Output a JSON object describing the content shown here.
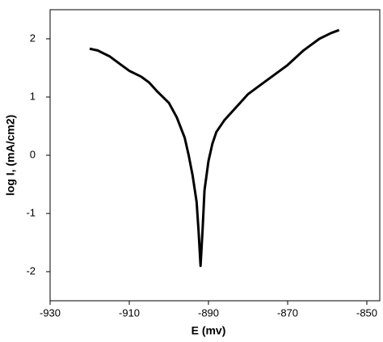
{
  "chart_data": {
    "type": "line",
    "x_label": "E (mv)",
    "y_label": "log I, (mA/cm2)",
    "x": [
      -920,
      -918,
      -915,
      -912,
      -910,
      -907,
      -905,
      -903,
      -900,
      -898,
      -896,
      -895,
      -894,
      -893,
      -892.5,
      -892,
      -891.5,
      -891,
      -890,
      -889,
      -888,
      -886,
      -884,
      -882,
      -880,
      -877,
      -874,
      -870,
      -866,
      -862,
      -859,
      -857
    ],
    "series": [
      {
        "color": "#000000",
        "values": [
          1.83,
          1.8,
          1.7,
          1.55,
          1.45,
          1.35,
          1.25,
          1.1,
          0.9,
          0.65,
          0.3,
          0.0,
          -0.35,
          -0.8,
          -1.3,
          -1.9,
          -1.3,
          -0.6,
          -0.1,
          0.2,
          0.4,
          0.6,
          0.75,
          0.9,
          1.05,
          1.2,
          1.35,
          1.55,
          1.8,
          2.0,
          2.1,
          2.15
        ]
      }
    ],
    "xlim": [
      -930,
      -850
    ],
    "xticks": [
      -930,
      -910,
      -890,
      -870,
      -850
    ],
    "ylim": [
      -2.5,
      2.5
    ],
    "yticks": [
      -2,
      -1,
      0,
      1,
      2
    ]
  }
}
